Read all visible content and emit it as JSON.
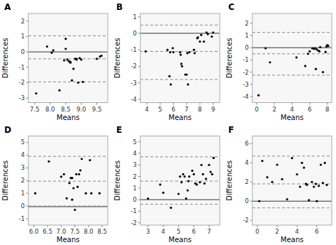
{
  "chart_data": [
    {
      "type": "scatter",
      "title": "A",
      "xlabel": "Means",
      "ylabel": "Differences",
      "color": "#000000",
      "grid": false,
      "xlim": [
        7.3,
        9.85
      ],
      "ylim": [
        -3.3,
        2.5
      ],
      "xticks": [
        7.5,
        {
          "value": 8.0,
          "label": "8.0"
        },
        8.5,
        {
          "value": 9.0,
          "label": "9.0"
        },
        9.5
      ],
      "yticks": [
        -3,
        -2,
        -1,
        0,
        1,
        2
      ],
      "reference_lines": [
        {
          "value": 0.0,
          "line_style": "solid",
          "color": "#333333"
        },
        {
          "value": -0.45,
          "line_style": "dashed",
          "color": "#888888"
        },
        {
          "value": 1.05,
          "line_style": "dashed",
          "color": "#888888"
        },
        {
          "value": -1.95,
          "line_style": "dashed",
          "color": "#888888"
        }
      ],
      "x": [
        7.55,
        7.9,
        8.05,
        8.1,
        8.3,
        8.45,
        8.5,
        8.5,
        8.55,
        8.6,
        8.65,
        8.65,
        8.7,
        8.75,
        8.8,
        8.85,
        8.85,
        8.9,
        8.95,
        9.0,
        9.05,
        9.5,
        9.6,
        9.65
      ],
      "values": [
        -2.7,
        0.35,
        -0.05,
        0.1,
        -2.5,
        -0.55,
        0.85,
        0.2,
        -0.5,
        -0.6,
        -0.65,
        -0.7,
        -1.85,
        -1.1,
        -0.45,
        -0.5,
        -0.45,
        -2.0,
        -0.4,
        -0.5,
        -1.95,
        -0.45,
        -0.3,
        -0.25
      ]
    },
    {
      "type": "scatter",
      "title": "B",
      "xlabel": "Means",
      "ylabel": "Differences",
      "color": "#000000",
      "grid": false,
      "xlim": [
        3.5,
        9.5
      ],
      "ylim": [
        -4.2,
        1.2
      ],
      "xticks": [
        4,
        5,
        6,
        7,
        8,
        9
      ],
      "yticks": [
        -4,
        -3,
        -2,
        -1,
        0,
        1
      ],
      "reference_lines": [
        {
          "value": 0.0,
          "line_style": "solid",
          "color": "#333333"
        },
        {
          "value": -1.1,
          "line_style": "dashed",
          "color": "#888888"
        },
        {
          "value": 0.5,
          "line_style": "dashed",
          "color": "#888888"
        },
        {
          "value": -2.8,
          "line_style": "dashed",
          "color": "#888888"
        }
      ],
      "x": [
        3.9,
        5.55,
        5.7,
        5.75,
        5.8,
        5.95,
        6.0,
        6.5,
        6.55,
        6.6,
        6.65,
        6.9,
        7.0,
        7.05,
        7.1,
        7.2,
        7.55,
        7.6,
        7.8,
        7.85,
        8.0,
        8.1,
        8.3,
        8.5,
        8.6,
        8.9,
        9.0
      ],
      "values": [
        -1.1,
        -1.0,
        -2.6,
        -1.15,
        -3.1,
        -0.9,
        -1.15,
        -1.15,
        -1.3,
        -1.85,
        -2.0,
        -2.5,
        -2.5,
        -1.2,
        -3.1,
        -1.15,
        -1.0,
        -1.2,
        -0.3,
        -0.25,
        -0.5,
        -0.1,
        -0.5,
        0.05,
        -0.05,
        -0.2,
        0.05
      ]
    },
    {
      "type": "scatter",
      "title": "C",
      "xlabel": "Means",
      "ylabel": "Differences",
      "color": "#000000",
      "grid": false,
      "xlim": [
        -0.5,
        8.5
      ],
      "ylim": [
        -4.5,
        2.8
      ],
      "xticks": [
        0,
        2,
        4,
        6,
        8
      ],
      "yticks": [
        -4,
        -3,
        -2,
        -1,
        0,
        1,
        2
      ],
      "reference_lines": [
        {
          "value": 0.0,
          "line_style": "solid",
          "color": "#333333"
        },
        {
          "value": -0.5,
          "line_style": "dashed",
          "color": "#888888"
        },
        {
          "value": 1.25,
          "line_style": "dashed",
          "color": "#888888"
        },
        {
          "value": -2.25,
          "line_style": "dashed",
          "color": "#888888"
        }
      ],
      "x": [
        0.2,
        1.0,
        1.5,
        4.5,
        5.5,
        5.8,
        6.0,
        6.3,
        6.5,
        6.6,
        6.7,
        6.8,
        7.0,
        7.1,
        7.2,
        7.5,
        7.8,
        7.9,
        8.0,
        8.1
      ],
      "values": [
        -3.9,
        -0.05,
        -1.2,
        -0.8,
        -1.5,
        -0.5,
        -0.3,
        -0.05,
        -0.1,
        -0.05,
        -1.75,
        -0.15,
        -0.25,
        -0.3,
        0.05,
        -2.0,
        -0.35,
        0.1,
        0.2,
        0.15
      ]
    },
    {
      "type": "scatter",
      "title": "D",
      "xlabel": "Means",
      "ylabel": "Differences",
      "color": "#000000",
      "grid": false,
      "xlim": [
        5.8,
        8.7
      ],
      "ylim": [
        -1.5,
        5.5
      ],
      "xticks": [
        {
          "value": 6.0,
          "label": "6.0"
        },
        6.5,
        {
          "value": 7.0,
          "label": "7.0"
        },
        7.5,
        {
          "value": 8.0,
          "label": "8.0"
        },
        8.5
      ],
      "yticks": [
        -1,
        0,
        1,
        2,
        3,
        4,
        5
      ],
      "reference_lines": [
        {
          "value": -0.05,
          "line_style": "solid",
          "color": "#333333"
        },
        {
          "value": 1.95,
          "line_style": "dashed",
          "color": "#888888"
        },
        {
          "value": 3.9,
          "line_style": "dashed",
          "color": "#888888"
        },
        {
          "value": 0.0,
          "line_style": "dashed",
          "color": "#888888"
        }
      ],
      "x": [
        6.05,
        6.55,
        7.0,
        7.1,
        7.2,
        7.3,
        7.35,
        7.4,
        7.4,
        7.45,
        7.5,
        7.55,
        7.6,
        7.65,
        7.7,
        7.75,
        7.9,
        8.05,
        8.1,
        8.4
      ],
      "values": [
        1.0,
        3.5,
        2.3,
        2.5,
        0.6,
        1.8,
        2.2,
        0.5,
        2.2,
        1.4,
        -0.3,
        2.5,
        1.5,
        2.5,
        2.8,
        3.7,
        1.0,
        3.6,
        1.0,
        1.0
      ]
    },
    {
      "type": "scatter",
      "title": "E",
      "xlabel": "Means",
      "ylabel": "Differences",
      "color": "#000000",
      "grid": false,
      "xlim": [
        2.5,
        7.7
      ],
      "ylim": [
        -2.2,
        5.5
      ],
      "xticks": [
        3,
        4,
        5,
        6,
        7
      ],
      "yticks": [
        -2,
        -1,
        0,
        1,
        2,
        3,
        4,
        5
      ],
      "reference_lines": [
        {
          "value": 0.0,
          "line_style": "solid",
          "color": "#333333"
        },
        {
          "value": 1.6,
          "line_style": "dashed",
          "color": "#888888"
        },
        {
          "value": 3.7,
          "line_style": "dashed",
          "color": "#888888"
        },
        {
          "value": -0.4,
          "line_style": "dashed",
          "color": "#888888"
        }
      ],
      "x": [
        3.0,
        3.8,
        4.0,
        4.5,
        5.0,
        5.1,
        5.2,
        5.3,
        5.4,
        5.5,
        5.6,
        5.65,
        5.7,
        5.9,
        6.0,
        6.1,
        6.2,
        6.4,
        6.5,
        6.6,
        6.7,
        6.8,
        7.0,
        7.1,
        7.2,
        7.3
      ],
      "values": [
        0.1,
        1.3,
        0.6,
        -0.7,
        0.5,
        2.0,
        1.5,
        2.2,
        2.0,
        0.1,
        0.8,
        1.6,
        2.0,
        2.5,
        2.2,
        1.4,
        1.3,
        1.5,
        3.0,
        2.2,
        1.4,
        1.8,
        3.0,
        2.4,
        2.2,
        3.6
      ]
    },
    {
      "type": "scatter",
      "title": "F",
      "xlabel": "Means",
      "ylabel": "Differences",
      "color": "#000000",
      "grid": false,
      "xlim": [
        -0.5,
        7.5
      ],
      "ylim": [
        -2.5,
        6.8
      ],
      "xticks": [
        0,
        2,
        4,
        6
      ],
      "yticks": [
        -2,
        0,
        2,
        4,
        6
      ],
      "reference_lines": [
        {
          "value": 0.0,
          "line_style": "solid",
          "color": "#333333"
        },
        {
          "value": 1.8,
          "line_style": "dashed",
          "color": "#888888"
        },
        {
          "value": 4.7,
          "line_style": "dashed",
          "color": "#888888"
        },
        {
          "value": -0.7,
          "line_style": "dashed",
          "color": "#888888"
        }
      ],
      "x": [
        0.2,
        0.5,
        1.0,
        1.5,
        2.0,
        2.5,
        3.0,
        3.5,
        4.0,
        4.3,
        4.5,
        4.7,
        4.9,
        5.0,
        5.2,
        5.5,
        5.7,
        5.9,
        6.0,
        6.2,
        6.4,
        6.6,
        6.8,
        7.0
      ],
      "values": [
        0.0,
        4.2,
        2.5,
        2.0,
        3.8,
        2.3,
        0.2,
        4.5,
        2.8,
        1.5,
        4.0,
        3.5,
        1.8,
        1.7,
        0.1,
        2.0,
        1.5,
        1.8,
        0.0,
        1.6,
        3.8,
        1.9,
        4.0,
        1.7
      ]
    }
  ]
}
